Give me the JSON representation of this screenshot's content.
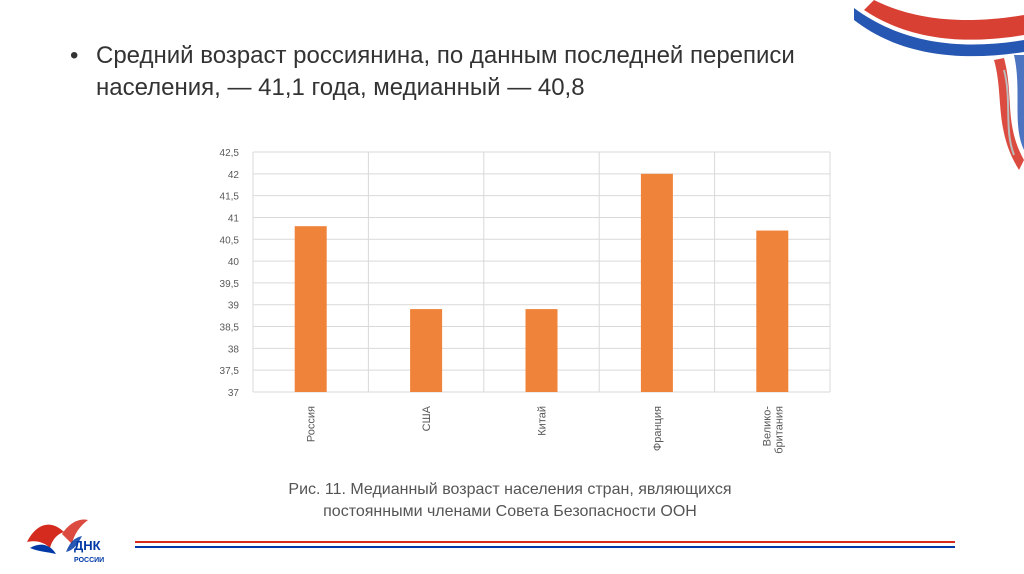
{
  "slide": {
    "bullet_line1": "Средний возраст россиянина, по данным последней переписи",
    "bullet_line2": "населения, — 41,1 года, медианный — 40,8",
    "caption_line1": "Рис. 11. Медианный возраст населения стран, являющихся",
    "caption_line2": "постоянными членами Совета Безопасности ООН",
    "logo_text_top": "ДНК",
    "logo_text_bottom": "РОССИИ"
  },
  "colors": {
    "bar": "#f0833a",
    "grid": "#d9d9d9",
    "flag_red": "#d52b1e",
    "flag_blue": "#0039a6"
  },
  "chart_data": {
    "type": "bar",
    "categories": [
      "Россия",
      "США",
      "Китай",
      "Франция",
      "Велико-британия"
    ],
    "category_lines": [
      [
        "Россия"
      ],
      [
        "США"
      ],
      [
        "Китай"
      ],
      [
        "Франция"
      ],
      [
        "Велико-",
        "британия"
      ]
    ],
    "values": [
      40.8,
      38.9,
      38.9,
      42,
      40.7
    ],
    "ylim": [
      37,
      42.5
    ],
    "yticks": [
      37,
      37.5,
      38,
      38.5,
      39,
      39.5,
      40,
      40.5,
      41,
      41.5,
      42,
      42.5
    ],
    "ytick_labels": [
      "37",
      "37,5",
      "38",
      "38,5",
      "39",
      "39,5",
      "40",
      "40,5",
      "41",
      "41,5",
      "42",
      "42,5"
    ],
    "title": "",
    "xlabel": "",
    "ylabel": "",
    "grid": true
  }
}
